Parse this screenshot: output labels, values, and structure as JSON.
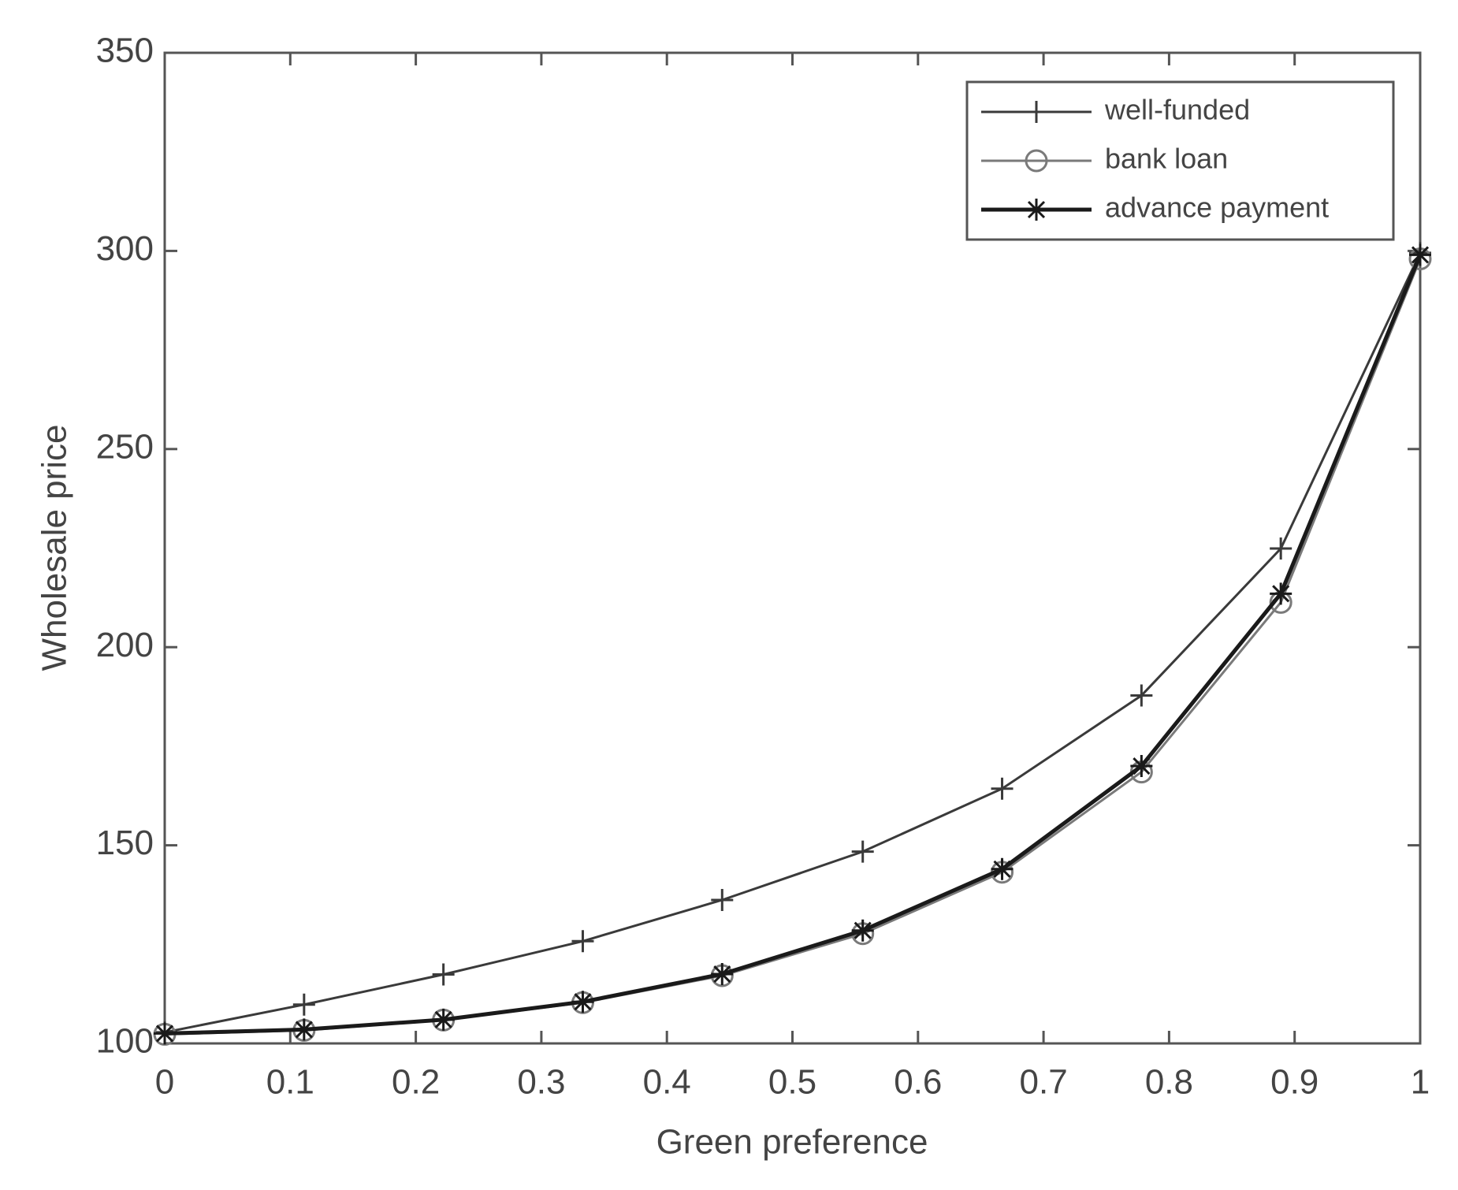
{
  "chart_data": {
    "type": "line",
    "x_label": "Green preference",
    "y_label": "Wholesale price",
    "x": [
      0,
      0.111,
      0.222,
      0.333,
      0.444,
      0.556,
      0.667,
      0.778,
      0.889,
      1
    ],
    "series": [
      {
        "name": "well-funded",
        "color": "#3a3a3a",
        "marker": "plus",
        "values": [
          102.8,
          109.8,
          117.4,
          125.8,
          136.2,
          148.4,
          164.3,
          187.8,
          224.9,
          299.5
        ]
      },
      {
        "name": "bank loan",
        "color": "#7a7a7a",
        "marker": "circle",
        "values": [
          102.3,
          103.3,
          105.9,
          110.3,
          117.1,
          127.7,
          143.2,
          168.5,
          211.3,
          298
        ]
      },
      {
        "name": "advance payment",
        "color": "#1a1a1a",
        "marker": "star",
        "values": [
          102.5,
          103.5,
          106,
          110.5,
          117.5,
          128.5,
          144,
          170,
          213.5,
          299
        ]
      }
    ],
    "xlim": [
      0,
      1
    ],
    "xticks": [
      0,
      0.1,
      0.2,
      0.3,
      0.4,
      0.5,
      0.6,
      0.7,
      0.8,
      0.9,
      1
    ],
    "ylim": [
      100,
      350
    ],
    "yticks": [
      100,
      150,
      200,
      250,
      300,
      350
    ],
    "grid": false,
    "legend": "upper right"
  }
}
